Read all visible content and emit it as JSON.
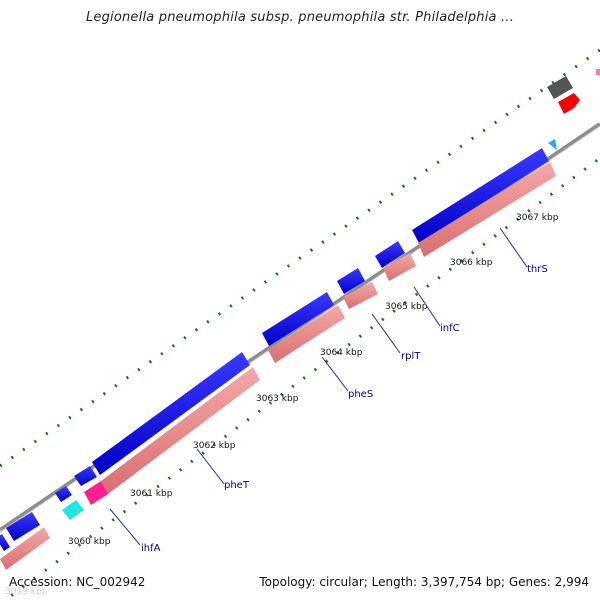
{
  "title": "Legionella pneumophila subsp. pneumophila str. Philadelphia ...",
  "footer": {
    "accession": "Accession: NC_002942",
    "summary": "Topology: circular; Length: 3,397,754 bp; Genes: 2,994"
  },
  "ticks": [
    "3059 kbp",
    "3060 kbp",
    "3061 kbp",
    "3062 kbp",
    "3063 kbp",
    "3064 kbp",
    "3065 kbp",
    "3066 kbp",
    "3067 kbp"
  ],
  "genes": [
    "ihfA",
    "pheT",
    "pheS",
    "rplT",
    "infC",
    "thrS"
  ],
  "colors": {
    "backbone": "#8c8c8c",
    "forward_cds": "#0000e6",
    "reverse_cds": "#e88a8a",
    "trna": "#ff1f8f",
    "misc_feature": "#22e6e6",
    "grey_feature": "#555555",
    "red_feature": "#ff0000",
    "gc_skew": "#117711",
    "label": "#00008b"
  }
}
